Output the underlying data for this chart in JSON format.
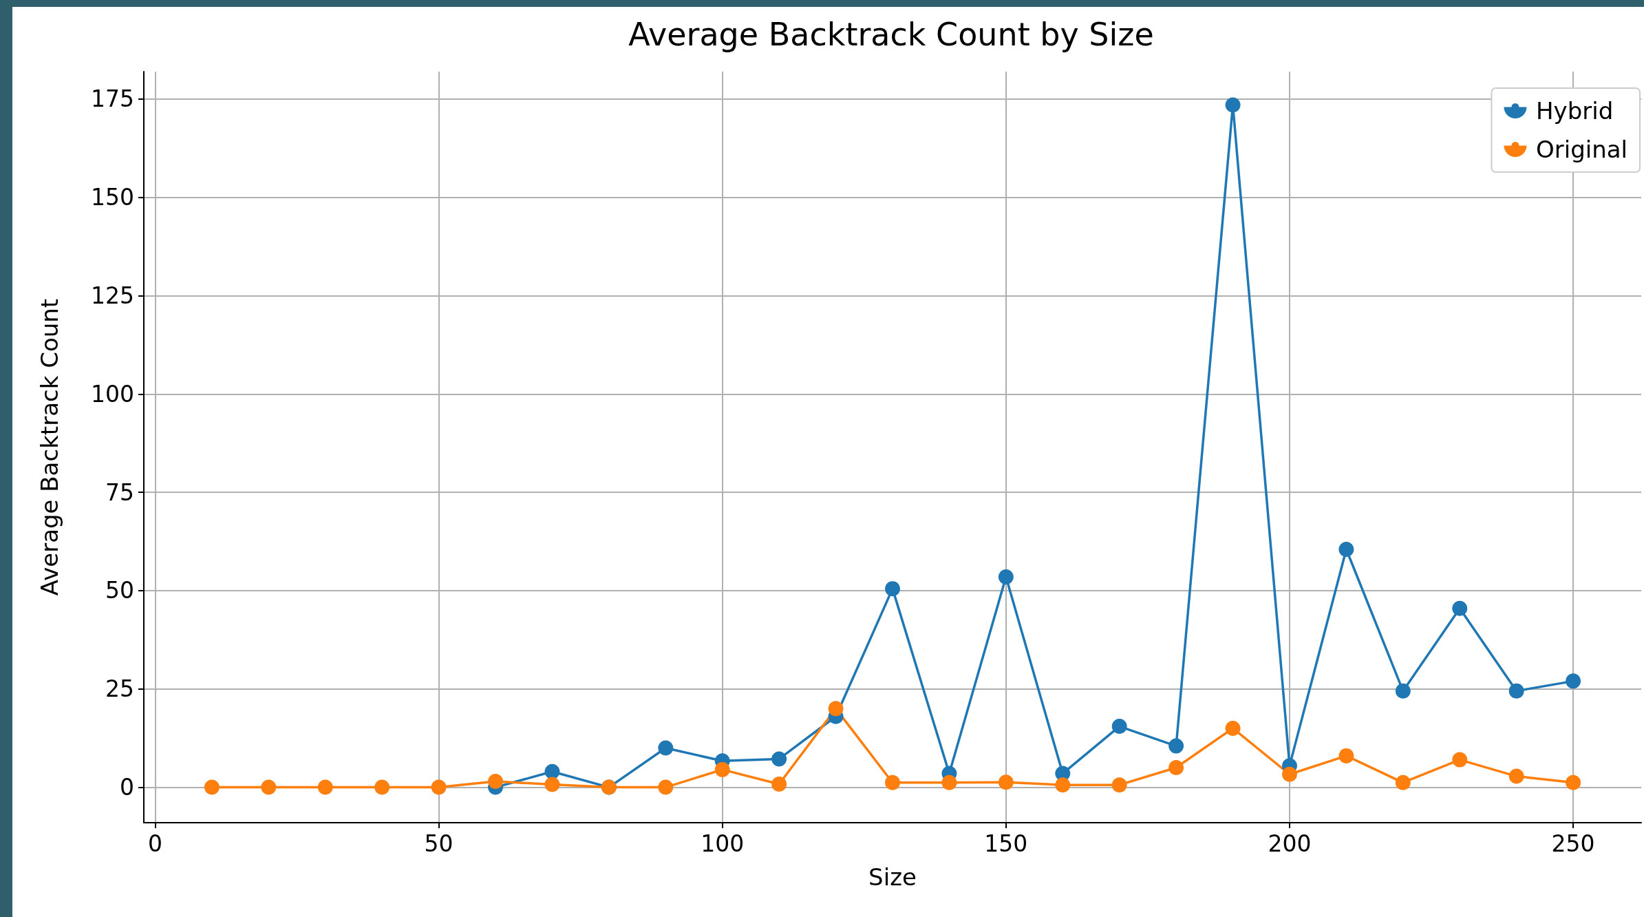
{
  "chart_data": {
    "type": "line",
    "title": "Average Backtrack Count by Size",
    "xlabel": "Size",
    "ylabel": "Average Backtrack Count",
    "x": [
      10,
      20,
      30,
      40,
      50,
      60,
      70,
      80,
      90,
      100,
      110,
      120,
      130,
      140,
      150,
      160,
      170,
      180,
      190,
      200,
      210,
      220,
      230,
      240,
      250
    ],
    "series": [
      {
        "name": "Hybrid",
        "color": "#1f77b4",
        "values": [
          null,
          null,
          null,
          null,
          null,
          0,
          4,
          0,
          10,
          6.7,
          7.2,
          18,
          50.5,
          3.5,
          53.5,
          3.5,
          15.5,
          10.5,
          173.5,
          5.5,
          60.5,
          24.5,
          45.5,
          24.5,
          27
        ]
      },
      {
        "name": "Original",
        "color": "#ff7f0e",
        "values": [
          0,
          0,
          0,
          0,
          0,
          1.5,
          0.7,
          0,
          0,
          4.5,
          0.8,
          20,
          1.2,
          1.2,
          1.3,
          0.6,
          0.6,
          5,
          15,
          3.3,
          8,
          1.2,
          7,
          2.8,
          1.2
        ]
      }
    ],
    "xlim": [
      -2,
      262
    ],
    "xticks": [
      0,
      50,
      100,
      150,
      200,
      250
    ],
    "ylim": [
      -9,
      182
    ],
    "yticks": [
      0,
      25,
      50,
      75,
      100,
      125,
      150,
      175
    ],
    "grid": true,
    "legend": "top right",
    "marker": "circle",
    "line_style": "solid"
  }
}
